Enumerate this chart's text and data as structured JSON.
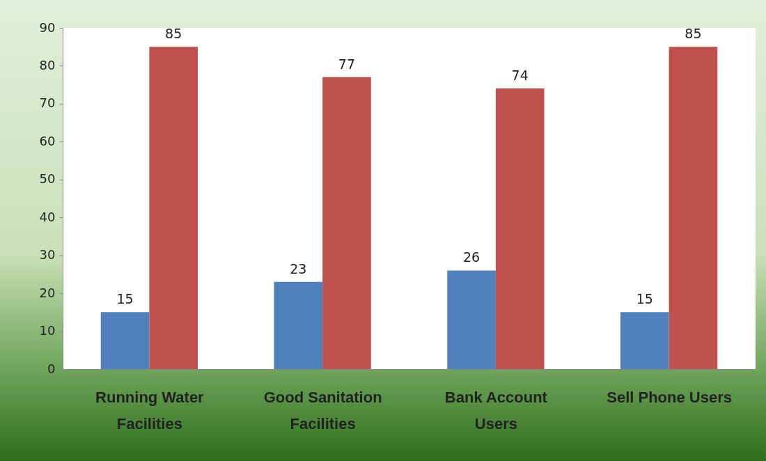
{
  "chart_data": {
    "type": "bar",
    "categories": [
      "Running Water Facilities",
      "Good Sanitation Facilities",
      "Bank Account Users",
      "Sell Phone Users"
    ],
    "series": [
      {
        "color": "#4f81bd",
        "values": [
          15,
          23,
          26,
          15
        ]
      },
      {
        "color": "#c0504d",
        "values": [
          85,
          77,
          74,
          85
        ]
      }
    ],
    "ylim": [
      0,
      90
    ],
    "yticks": [
      0,
      10,
      20,
      30,
      40,
      50,
      60,
      70,
      80,
      90
    ],
    "data_labels": true,
    "grid": false,
    "legend": false
  }
}
